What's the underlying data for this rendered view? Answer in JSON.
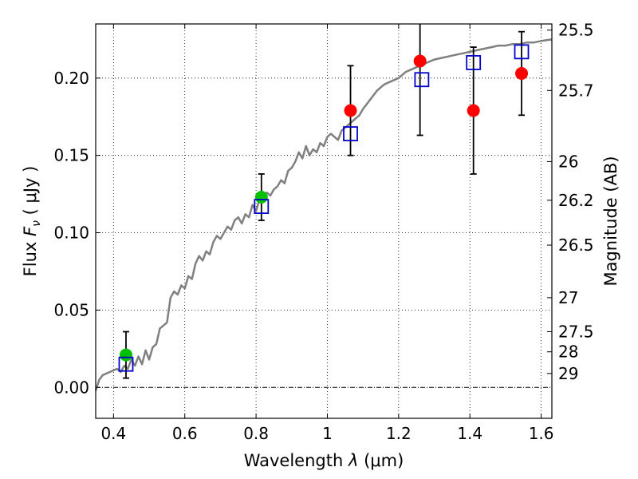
{
  "chart_data": {
    "type": "scatter",
    "xlabel_prefix": "Wavelength  ",
    "xlabel_symbol": "λ",
    "xlabel_units": " (μm)",
    "ylabel_prefix": "Flux  ",
    "ylabel_symbol": "F",
    "ylabel_subscript": "ν",
    "ylabel_units": "  ( μJy )",
    "y2label": "Magnitude (AB)",
    "xlim": [
      0.35,
      1.63
    ],
    "ylim": [
      -0.02,
      0.235
    ],
    "xticks": [
      0.4,
      0.6,
      0.8,
      1.0,
      1.2,
      1.4,
      1.6
    ],
    "xtick_labels": [
      "0.4",
      "0.6",
      "0.8",
      "1",
      "1.2",
      "1.4",
      "1.6"
    ],
    "yticks": [
      0.0,
      0.05,
      0.1,
      0.15,
      0.2
    ],
    "ytick_labels": [
      "0.00",
      "0.05",
      "0.10",
      "0.15",
      "0.20"
    ],
    "y2ticks": [
      {
        "label": "25.5",
        "flux": 0.231
      },
      {
        "label": "25.7",
        "flux": 0.192
      },
      {
        "label": "26",
        "flux": 0.146
      },
      {
        "label": "26.2",
        "flux": 0.121
      },
      {
        "label": "26.5",
        "flux": 0.092
      },
      {
        "label": "27",
        "flux": 0.058
      },
      {
        "label": "27.5",
        "flux": 0.036
      },
      {
        "label": "28",
        "flux": 0.023
      },
      {
        "label": "29",
        "flux": 0.009
      }
    ],
    "grid": true,
    "colors": {
      "model": "#808080",
      "observed_optical": "#00c000",
      "observed_ir": "#ff0000",
      "model_photometry": "#0000cc",
      "errorbar": "#000000"
    },
    "model_spectrum": {
      "x": [
        0.35,
        0.36,
        0.37,
        0.38,
        0.39,
        0.4,
        0.41,
        0.42,
        0.43,
        0.44,
        0.45,
        0.46,
        0.47,
        0.48,
        0.49,
        0.5,
        0.51,
        0.52,
        0.53,
        0.54,
        0.55,
        0.56,
        0.57,
        0.58,
        0.59,
        0.6,
        0.61,
        0.62,
        0.63,
        0.64,
        0.65,
        0.66,
        0.67,
        0.68,
        0.69,
        0.7,
        0.71,
        0.72,
        0.73,
        0.74,
        0.75,
        0.76,
        0.77,
        0.78,
        0.79,
        0.8,
        0.81,
        0.82,
        0.83,
        0.84,
        0.85,
        0.86,
        0.87,
        0.88,
        0.89,
        0.9,
        0.91,
        0.92,
        0.93,
        0.94,
        0.95,
        0.96,
        0.97,
        0.98,
        0.99,
        1.0,
        1.01,
        1.02,
        1.03,
        1.04,
        1.05,
        1.06,
        1.07,
        1.08,
        1.09,
        1.1,
        1.12,
        1.14,
        1.16,
        1.18,
        1.2,
        1.22,
        1.24,
        1.26,
        1.28,
        1.3,
        1.32,
        1.34,
        1.36,
        1.38,
        1.4,
        1.42,
        1.44,
        1.46,
        1.48,
        1.5,
        1.52,
        1.54,
        1.56,
        1.58,
        1.6,
        1.63
      ],
      "y": [
        -0.002,
        0.005,
        0.008,
        0.009,
        0.01,
        0.011,
        0.012,
        0.01,
        0.014,
        0.012,
        0.018,
        0.014,
        0.02,
        0.015,
        0.024,
        0.018,
        0.026,
        0.028,
        0.038,
        0.04,
        0.042,
        0.058,
        0.062,
        0.06,
        0.066,
        0.064,
        0.072,
        0.07,
        0.08,
        0.085,
        0.082,
        0.088,
        0.086,
        0.094,
        0.098,
        0.096,
        0.1,
        0.104,
        0.102,
        0.108,
        0.11,
        0.106,
        0.112,
        0.11,
        0.118,
        0.114,
        0.122,
        0.12,
        0.126,
        0.124,
        0.128,
        0.13,
        0.134,
        0.132,
        0.14,
        0.142,
        0.146,
        0.152,
        0.148,
        0.156,
        0.15,
        0.154,
        0.152,
        0.158,
        0.156,
        0.162,
        0.164,
        0.162,
        0.16,
        0.166,
        0.168,
        0.17,
        0.172,
        0.174,
        0.176,
        0.18,
        0.186,
        0.192,
        0.196,
        0.198,
        0.2,
        0.204,
        0.206,
        0.208,
        0.21,
        0.212,
        0.213,
        0.214,
        0.215,
        0.216,
        0.217,
        0.218,
        0.219,
        0.22,
        0.221,
        0.221,
        0.222,
        0.222,
        0.223,
        0.223,
        0.224,
        0.225
      ]
    },
    "observed": [
      {
        "x": 0.435,
        "y": 0.021,
        "err_lo": 0.015,
        "err_hi": 0.015,
        "band": "optical"
      },
      {
        "x": 0.815,
        "y": 0.123,
        "err_lo": 0.015,
        "err_hi": 0.015,
        "band": "optical"
      },
      {
        "x": 1.065,
        "y": 0.179,
        "err_lo": 0.029,
        "err_hi": 0.029,
        "band": "ir"
      },
      {
        "x": 1.26,
        "y": 0.211,
        "err_lo": 0.048,
        "err_hi": 0.048,
        "band": "ir"
      },
      {
        "x": 1.41,
        "y": 0.179,
        "err_lo": 0.041,
        "err_hi": 0.041,
        "band": "ir"
      },
      {
        "x": 1.545,
        "y": 0.203,
        "err_lo": 0.027,
        "err_hi": 0.027,
        "band": "ir"
      }
    ],
    "model_photometry": [
      {
        "x": 0.435,
        "y": 0.015
      },
      {
        "x": 0.815,
        "y": 0.117
      },
      {
        "x": 1.065,
        "y": 0.164
      },
      {
        "x": 1.265,
        "y": 0.199
      },
      {
        "x": 1.41,
        "y": 0.21
      },
      {
        "x": 1.545,
        "y": 0.217
      }
    ]
  }
}
